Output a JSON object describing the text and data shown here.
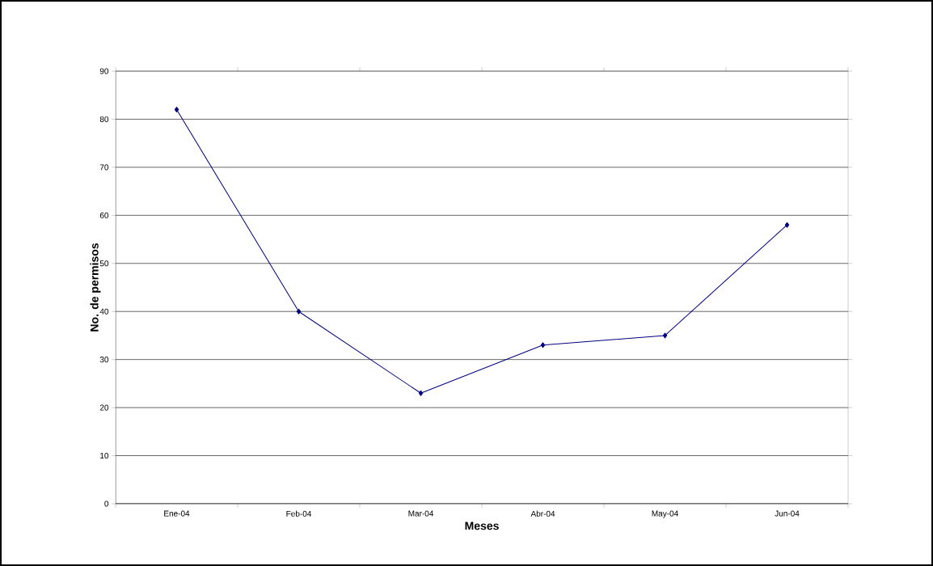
{
  "chart_data": {
    "type": "line",
    "xlabel": "Meses",
    "ylabel": "No. de permisos",
    "categories": [
      "Ene-04",
      "Feb-04",
      "Mar-04",
      "Abr-04",
      "May-04",
      "Jun-04"
    ],
    "series": [
      {
        "color": "#000080",
        "values": [
          82,
          40,
          23,
          33,
          35,
          58
        ]
      }
    ],
    "ylim": [
      0,
      90
    ],
    "yticks": [
      0,
      10,
      20,
      30,
      40,
      50,
      60,
      70,
      80,
      90
    ],
    "grid": "y",
    "marker": "diamond",
    "line_style": "solid"
  }
}
